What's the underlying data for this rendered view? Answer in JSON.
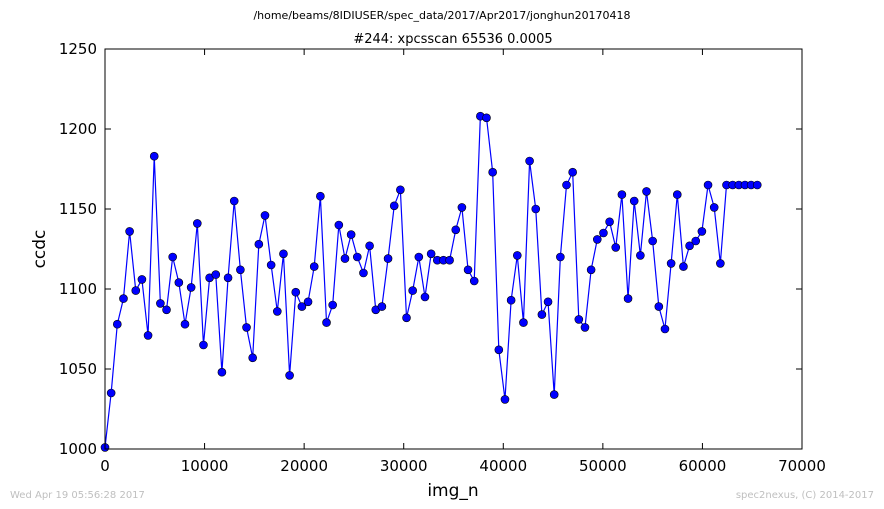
{
  "chart_data": {
    "type": "line",
    "subtitle": "/home/beams/8IDIUSER/spec_data/2017/Apr2017/jonghun20170418",
    "title": "#244: xpcsscan 65536 0.0005",
    "xlabel": "img_n",
    "ylabel": "ccdc",
    "xlim": [
      0,
      70000
    ],
    "ylim": [
      1000,
      1250
    ],
    "xticks": [
      0,
      10000,
      20000,
      30000,
      40000,
      50000,
      60000,
      70000
    ],
    "yticks": [
      1000,
      1050,
      1100,
      1150,
      1200,
      1250
    ],
    "grid": false,
    "marker_color": "#0000ff",
    "line_color": "#0000ff",
    "series": [
      {
        "x": [
          0,
          618,
          1236,
          1854,
          2472,
          3090,
          3708,
          4326,
          4944,
          5562,
          6180,
          6798,
          7416,
          8034,
          8652,
          9270,
          9888,
          10506,
          11124,
          11742,
          12360,
          12978,
          13596,
          14214,
          14832,
          15450,
          16068,
          16686,
          17304,
          17922,
          18540,
          19158,
          19776,
          20394,
          21012,
          21630,
          22248,
          22866,
          23484,
          24102,
          24720,
          25338,
          25956,
          26574,
          27192,
          27810,
          28428,
          29046,
          29664,
          30282,
          30900,
          31518,
          32136,
          32754,
          33372,
          33990,
          34608,
          35226,
          35844,
          36462,
          37080,
          37698,
          38316,
          38934,
          39552,
          40170,
          40788,
          41406,
          42024,
          42642,
          43260,
          43878,
          44496,
          45114,
          45732,
          46350,
          46968,
          47586,
          48204,
          48822,
          49440,
          50058,
          50676,
          51294,
          51912,
          52530,
          53148,
          53766,
          54384,
          55002,
          55620,
          56238,
          56856,
          57474,
          58092,
          58710,
          59328,
          59946,
          60564,
          61182,
          61800,
          62418,
          63036,
          63654,
          64272,
          64890,
          65508
        ],
        "y": [
          1001,
          1035,
          1078,
          1094,
          1136,
          1099,
          1106,
          1071,
          1183,
          1091,
          1087,
          1120,
          1104,
          1078,
          1101,
          1141,
          1065,
          1107,
          1109,
          1048,
          1107,
          1155,
          1112,
          1076,
          1057,
          1128,
          1146,
          1115,
          1086,
          1122,
          1046,
          1098,
          1089,
          1092,
          1114,
          1158,
          1079,
          1090,
          1140,
          1119,
          1134,
          1120,
          1110,
          1127,
          1087,
          1089,
          1119,
          1152,
          1162,
          1082,
          1099,
          1120,
          1095,
          1122,
          1118,
          1118,
          1118,
          1137,
          1151,
          1112,
          1105,
          1208,
          1207,
          1173,
          1062,
          1031,
          1093,
          1121,
          1079,
          1180,
          1150,
          1084,
          1092,
          1034,
          1120,
          1165,
          1173,
          1081,
          1076,
          1112,
          1131,
          1135,
          1142,
          1126,
          1159,
          1094,
          1155,
          1121,
          1161,
          1130,
          1089,
          1075,
          1116,
          1159,
          1114,
          1127,
          1130,
          1136,
          1165,
          1151,
          1116,
          1165,
          1165,
          1165,
          1165,
          1165,
          1165
        ]
      }
    ]
  },
  "footer": {
    "left": "Wed Apr 19 05:56:28 2017",
    "right": "spec2nexus, (C) 2014-2017"
  }
}
